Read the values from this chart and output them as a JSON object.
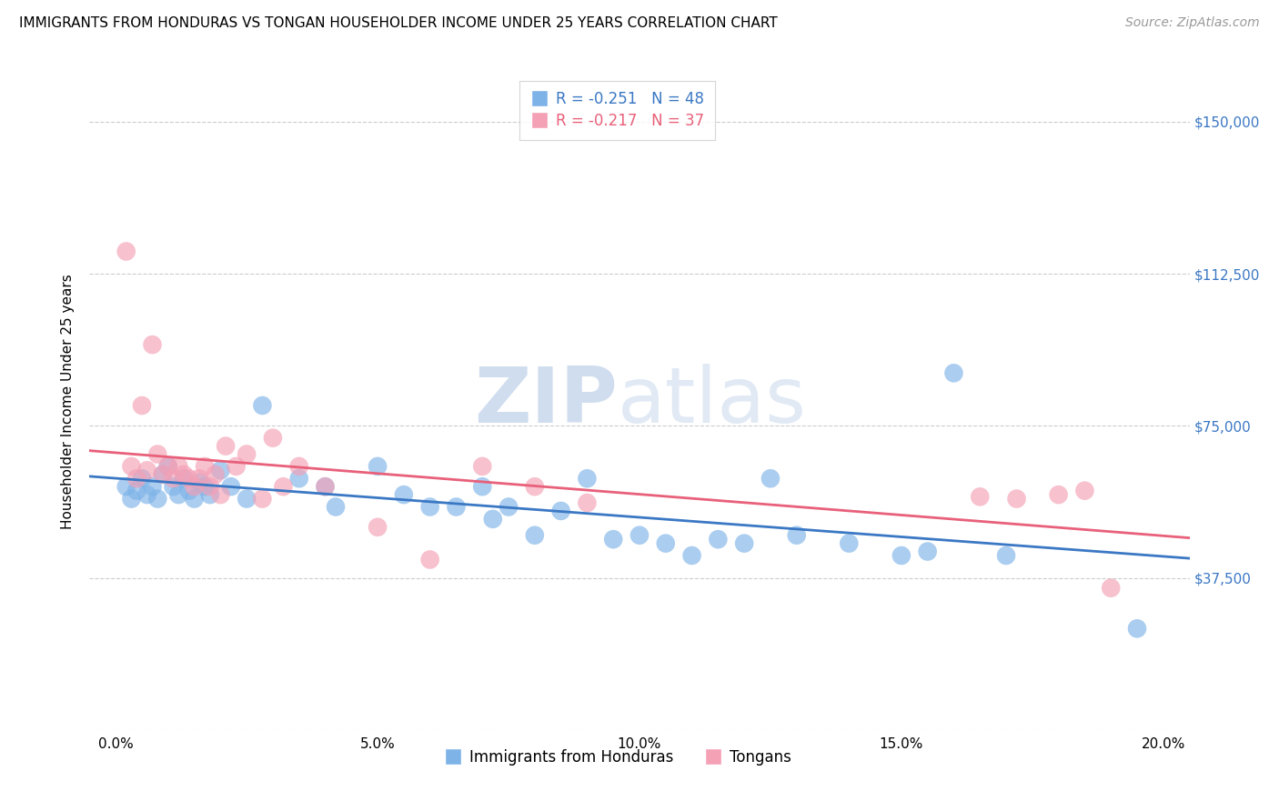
{
  "title": "IMMIGRANTS FROM HONDURAS VS TONGAN HOUSEHOLDER INCOME UNDER 25 YEARS CORRELATION CHART",
  "source": "Source: ZipAtlas.com",
  "ylabel": "Householder Income Under 25 years",
  "xlabel_ticks": [
    "0.0%",
    "",
    "",
    "",
    "5.0%",
    "",
    "",
    "",
    "",
    "10.0%",
    "",
    "",
    "",
    "",
    "15.0%",
    "",
    "",
    "",
    "",
    "20.0%"
  ],
  "xlabel_vals": [
    0.0,
    1.0,
    2.0,
    3.0,
    4.0,
    5.0,
    6.0,
    7.0,
    8.0,
    9.0,
    10.0,
    11.0,
    12.0,
    13.0,
    14.0,
    15.0,
    16.0,
    17.0,
    18.0,
    19.0,
    20.0
  ],
  "xlabel_show": [
    0.0,
    5.0,
    10.0,
    15.0,
    20.0
  ],
  "xlabel_show_labels": [
    "0.0%",
    "5.0%",
    "10.0%",
    "15.0%",
    "20.0%"
  ],
  "ytick_vals": [
    0,
    37500,
    75000,
    112500,
    150000
  ],
  "ytick_labels": [
    "",
    "$37,500",
    "$75,000",
    "$112,500",
    "$150,000"
  ],
  "xlim": [
    -0.5,
    20.5
  ],
  "ylim": [
    0,
    162000
  ],
  "blue_color": "#7EB3E8",
  "pink_color": "#F4A0B5",
  "blue_line_color": "#3B78C4",
  "pink_line_color": "#E8607A",
  "legend_label_blue": "R = -0.251   N = 48",
  "legend_label_pink": "R = -0.217   N = 37",
  "legend_label_blue_bottom": "Immigrants from Honduras",
  "legend_label_pink_bottom": "Tongans",
  "watermark_zip": "ZIP",
  "watermark_atlas": "atlas",
  "blue_x": [
    0.2,
    0.3,
    0.4,
    0.5,
    0.6,
    0.7,
    0.8,
    0.9,
    1.0,
    1.1,
    1.2,
    1.3,
    1.4,
    1.5,
    1.6,
    1.7,
    1.8,
    2.0,
    2.2,
    2.5,
    2.8,
    3.5,
    4.0,
    4.2,
    5.0,
    5.5,
    6.0,
    6.5,
    7.0,
    7.2,
    7.5,
    8.0,
    8.5,
    9.0,
    9.5,
    10.0,
    10.5,
    11.0,
    11.5,
    12.0,
    12.5,
    13.0,
    14.0,
    15.0,
    15.5,
    16.0,
    17.0,
    19.5
  ],
  "blue_y": [
    60000,
    57000,
    59000,
    62000,
    58000,
    60000,
    57000,
    63000,
    65000,
    60000,
    58000,
    62000,
    59000,
    57000,
    61000,
    60000,
    58000,
    64000,
    60000,
    57000,
    80000,
    62000,
    60000,
    55000,
    65000,
    58000,
    55000,
    55000,
    60000,
    52000,
    55000,
    48000,
    54000,
    62000,
    47000,
    48000,
    46000,
    43000,
    47000,
    46000,
    62000,
    48000,
    46000,
    43000,
    44000,
    88000,
    43000,
    25000
  ],
  "pink_x": [
    0.2,
    0.3,
    0.4,
    0.5,
    0.6,
    0.7,
    0.8,
    0.9,
    1.0,
    1.1,
    1.2,
    1.3,
    1.4,
    1.5,
    1.6,
    1.7,
    1.8,
    1.9,
    2.0,
    2.1,
    2.3,
    2.5,
    2.8,
    3.0,
    3.2,
    3.5,
    4.0,
    5.0,
    6.0,
    7.0,
    8.0,
    9.0,
    16.5,
    17.2,
    18.0,
    18.5,
    19.0
  ],
  "pink_y": [
    118000,
    65000,
    62000,
    80000,
    64000,
    95000,
    68000,
    63000,
    65000,
    62000,
    65000,
    63000,
    62000,
    60000,
    62000,
    65000,
    60000,
    63000,
    58000,
    70000,
    65000,
    68000,
    57000,
    72000,
    60000,
    65000,
    60000,
    50000,
    42000,
    65000,
    60000,
    56000,
    57500,
    57000,
    58000,
    59000,
    35000
  ],
  "title_fontsize": 11,
  "source_fontsize": 10,
  "axis_label_fontsize": 11,
  "tick_fontsize": 11,
  "legend_fontsize": 12
}
